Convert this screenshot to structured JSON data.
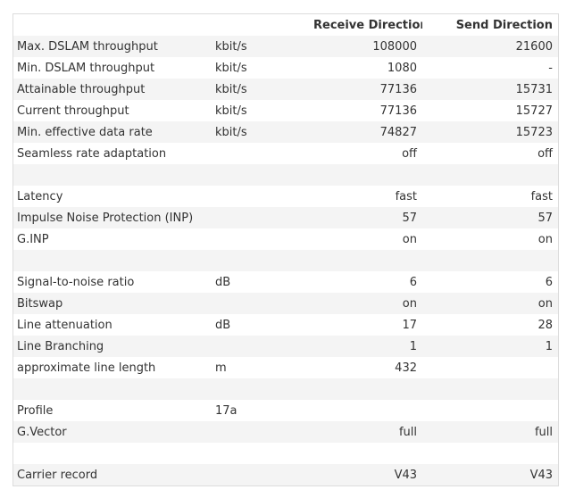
{
  "table": {
    "rows": [
      [
        null,
        null,
        "Receive Direction",
        "Send Direction"
      ],
      [
        "Max. DSLAM throughput",
        "kbit/s",
        "108000",
        "21600"
      ],
      [
        "Min. DSLAM throughput",
        "kbit/s",
        "1080",
        "-"
      ],
      [
        "Attainable throughput",
        "kbit/s",
        "77136",
        "15731"
      ],
      [
        "Current throughput",
        "kbit/s",
        "77136",
        "15727"
      ],
      [
        "Min. effective data rate",
        "kbit/s",
        "74827",
        "15723"
      ],
      [
        "Seamless rate adaptation",
        null,
        "off",
        "off"
      ],
      [
        null,
        null,
        null,
        null
      ],
      [
        "Latency",
        null,
        "fast",
        "fast"
      ],
      [
        "Impulse Noise Protection (INP)",
        null,
        "57",
        "57"
      ],
      [
        "G.INP",
        null,
        "on",
        "on"
      ],
      [
        null,
        null,
        null,
        null
      ],
      [
        "Signal-to-noise ratio",
        "dB",
        "6",
        "6"
      ],
      [
        "Bitswap",
        null,
        "on",
        "on"
      ],
      [
        "Line attenuation",
        "dB",
        "17",
        "28"
      ],
      [
        "Line Branching",
        null,
        "1",
        "1"
      ],
      [
        "approximate line length",
        "m",
        "432",
        null
      ],
      [
        null,
        null,
        null,
        null
      ],
      [
        "Profile",
        "17a",
        null,
        null
      ],
      [
        "G.Vector",
        null,
        "full",
        "full"
      ],
      [
        null,
        null,
        null,
        null
      ],
      [
        "Carrier record",
        null,
        "V43",
        "V43"
      ]
    ]
  }
}
